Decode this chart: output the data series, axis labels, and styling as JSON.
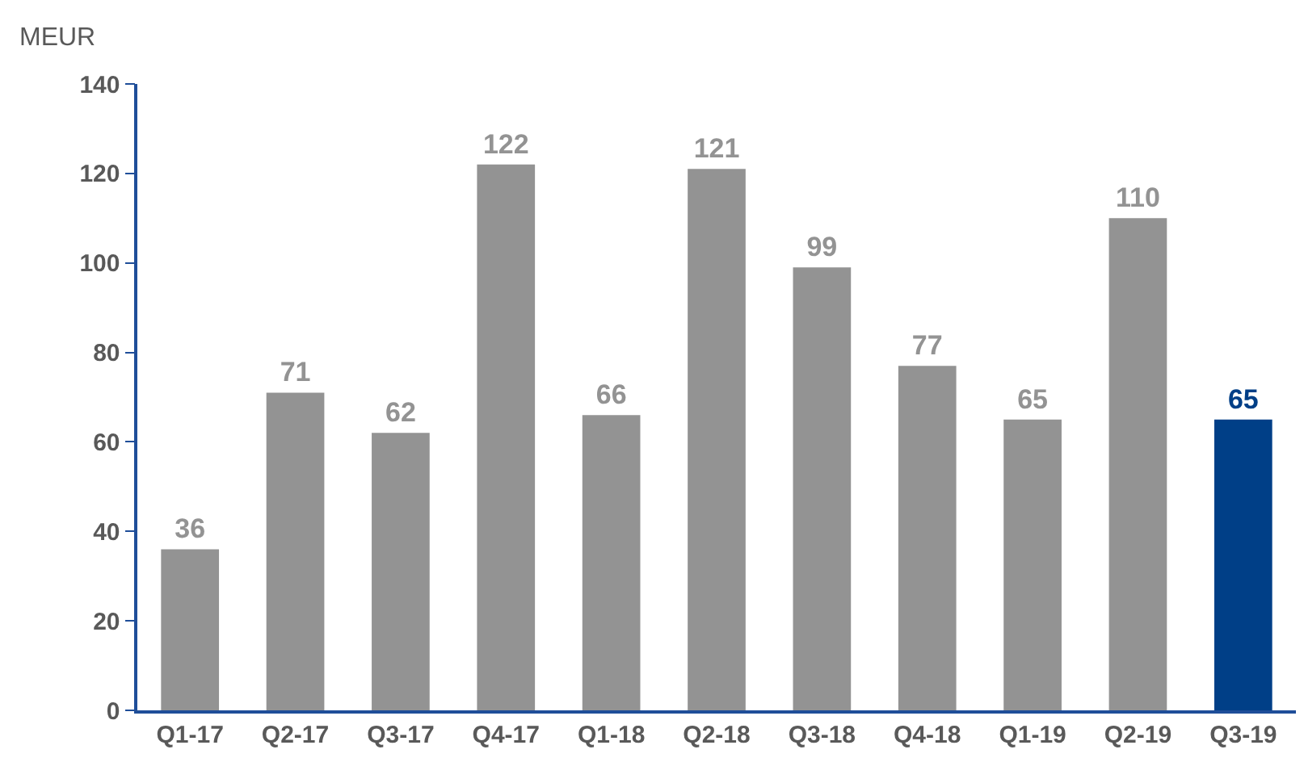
{
  "chart_data": {
    "type": "bar",
    "ylabel": "MEUR",
    "categories": [
      "Q1-17",
      "Q2-17",
      "Q3-17",
      "Q4-17",
      "Q1-18",
      "Q2-18",
      "Q3-18",
      "Q4-18",
      "Q1-19",
      "Q2-19",
      "Q3-19"
    ],
    "values": [
      36,
      71,
      62,
      122,
      66,
      121,
      99,
      77,
      65,
      110,
      65
    ],
    "colors": [
      "#939393",
      "#939393",
      "#939393",
      "#939393",
      "#939393",
      "#939393",
      "#939393",
      "#939393",
      "#939393",
      "#939393",
      "#003f87"
    ],
    "ylim": [
      0,
      140
    ],
    "yticks": [
      0,
      20,
      40,
      60,
      80,
      100,
      120,
      140
    ],
    "data_labels": true
  }
}
